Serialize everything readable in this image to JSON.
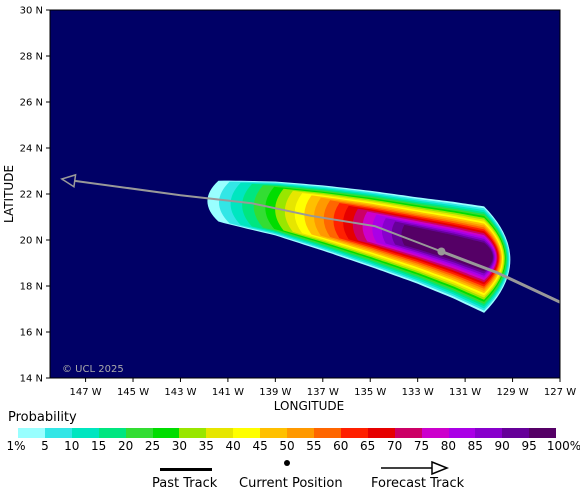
{
  "axes": {
    "y_title": "LATITUDE",
    "x_title": "LONGITUDE",
    "lat_ticks": [
      "30 N",
      "28 N",
      "26 N",
      "24 N",
      "22 N",
      "20 N",
      "18 N",
      "16 N",
      "14 N"
    ],
    "lon_ticks": [
      "147 W",
      "145 W",
      "143 W",
      "141 W",
      "139 W",
      "137 W",
      "135 W",
      "133 W",
      "131 W",
      "129 W",
      "127 W"
    ]
  },
  "map": {
    "background_color": "#000066",
    "copyright": "© UCL 2025",
    "lat_range": [
      14,
      30
    ],
    "lon_range": [
      -148.5,
      -127
    ]
  },
  "track": {
    "past": [
      [
        -134.8,
        20.6
      ],
      [
        -132,
        19.5
      ]
    ],
    "current_position": [
      -132,
      19.5
    ],
    "forecast": [
      [
        -132,
        19.5
      ],
      [
        -129.7,
        18.6
      ],
      [
        -127,
        17.3
      ]
    ],
    "history_line": [
      [
        -148,
        22.65
      ],
      [
        -143,
        21.95
      ],
      [
        -140,
        21.6
      ],
      [
        -137.5,
        21.05
      ],
      [
        -134.8,
        20.6
      ]
    ]
  },
  "legend": {
    "title": "Probability",
    "colors": [
      "#99ffff",
      "#33e6e6",
      "#00e6c0",
      "#00e680",
      "#33dd33",
      "#00dd00",
      "#99e600",
      "#e6e600",
      "#ffff00",
      "#ffc000",
      "#ff9900",
      "#ff6600",
      "#ff2000",
      "#e60000",
      "#cc0066",
      "#cc00cc",
      "#aa00e6",
      "#8800cc",
      "#660099",
      "#550066"
    ],
    "labels": [
      "1%",
      "5",
      "10",
      "15",
      "20",
      "25",
      "30",
      "35",
      "40",
      "45",
      "50",
      "55",
      "60",
      "65",
      "70",
      "75",
      "80",
      "85",
      "90",
      "95",
      "100%"
    ],
    "past_track_label": "Past Track",
    "current_position_label": "Current Position",
    "forecast_track_label": "Forecast Track"
  }
}
